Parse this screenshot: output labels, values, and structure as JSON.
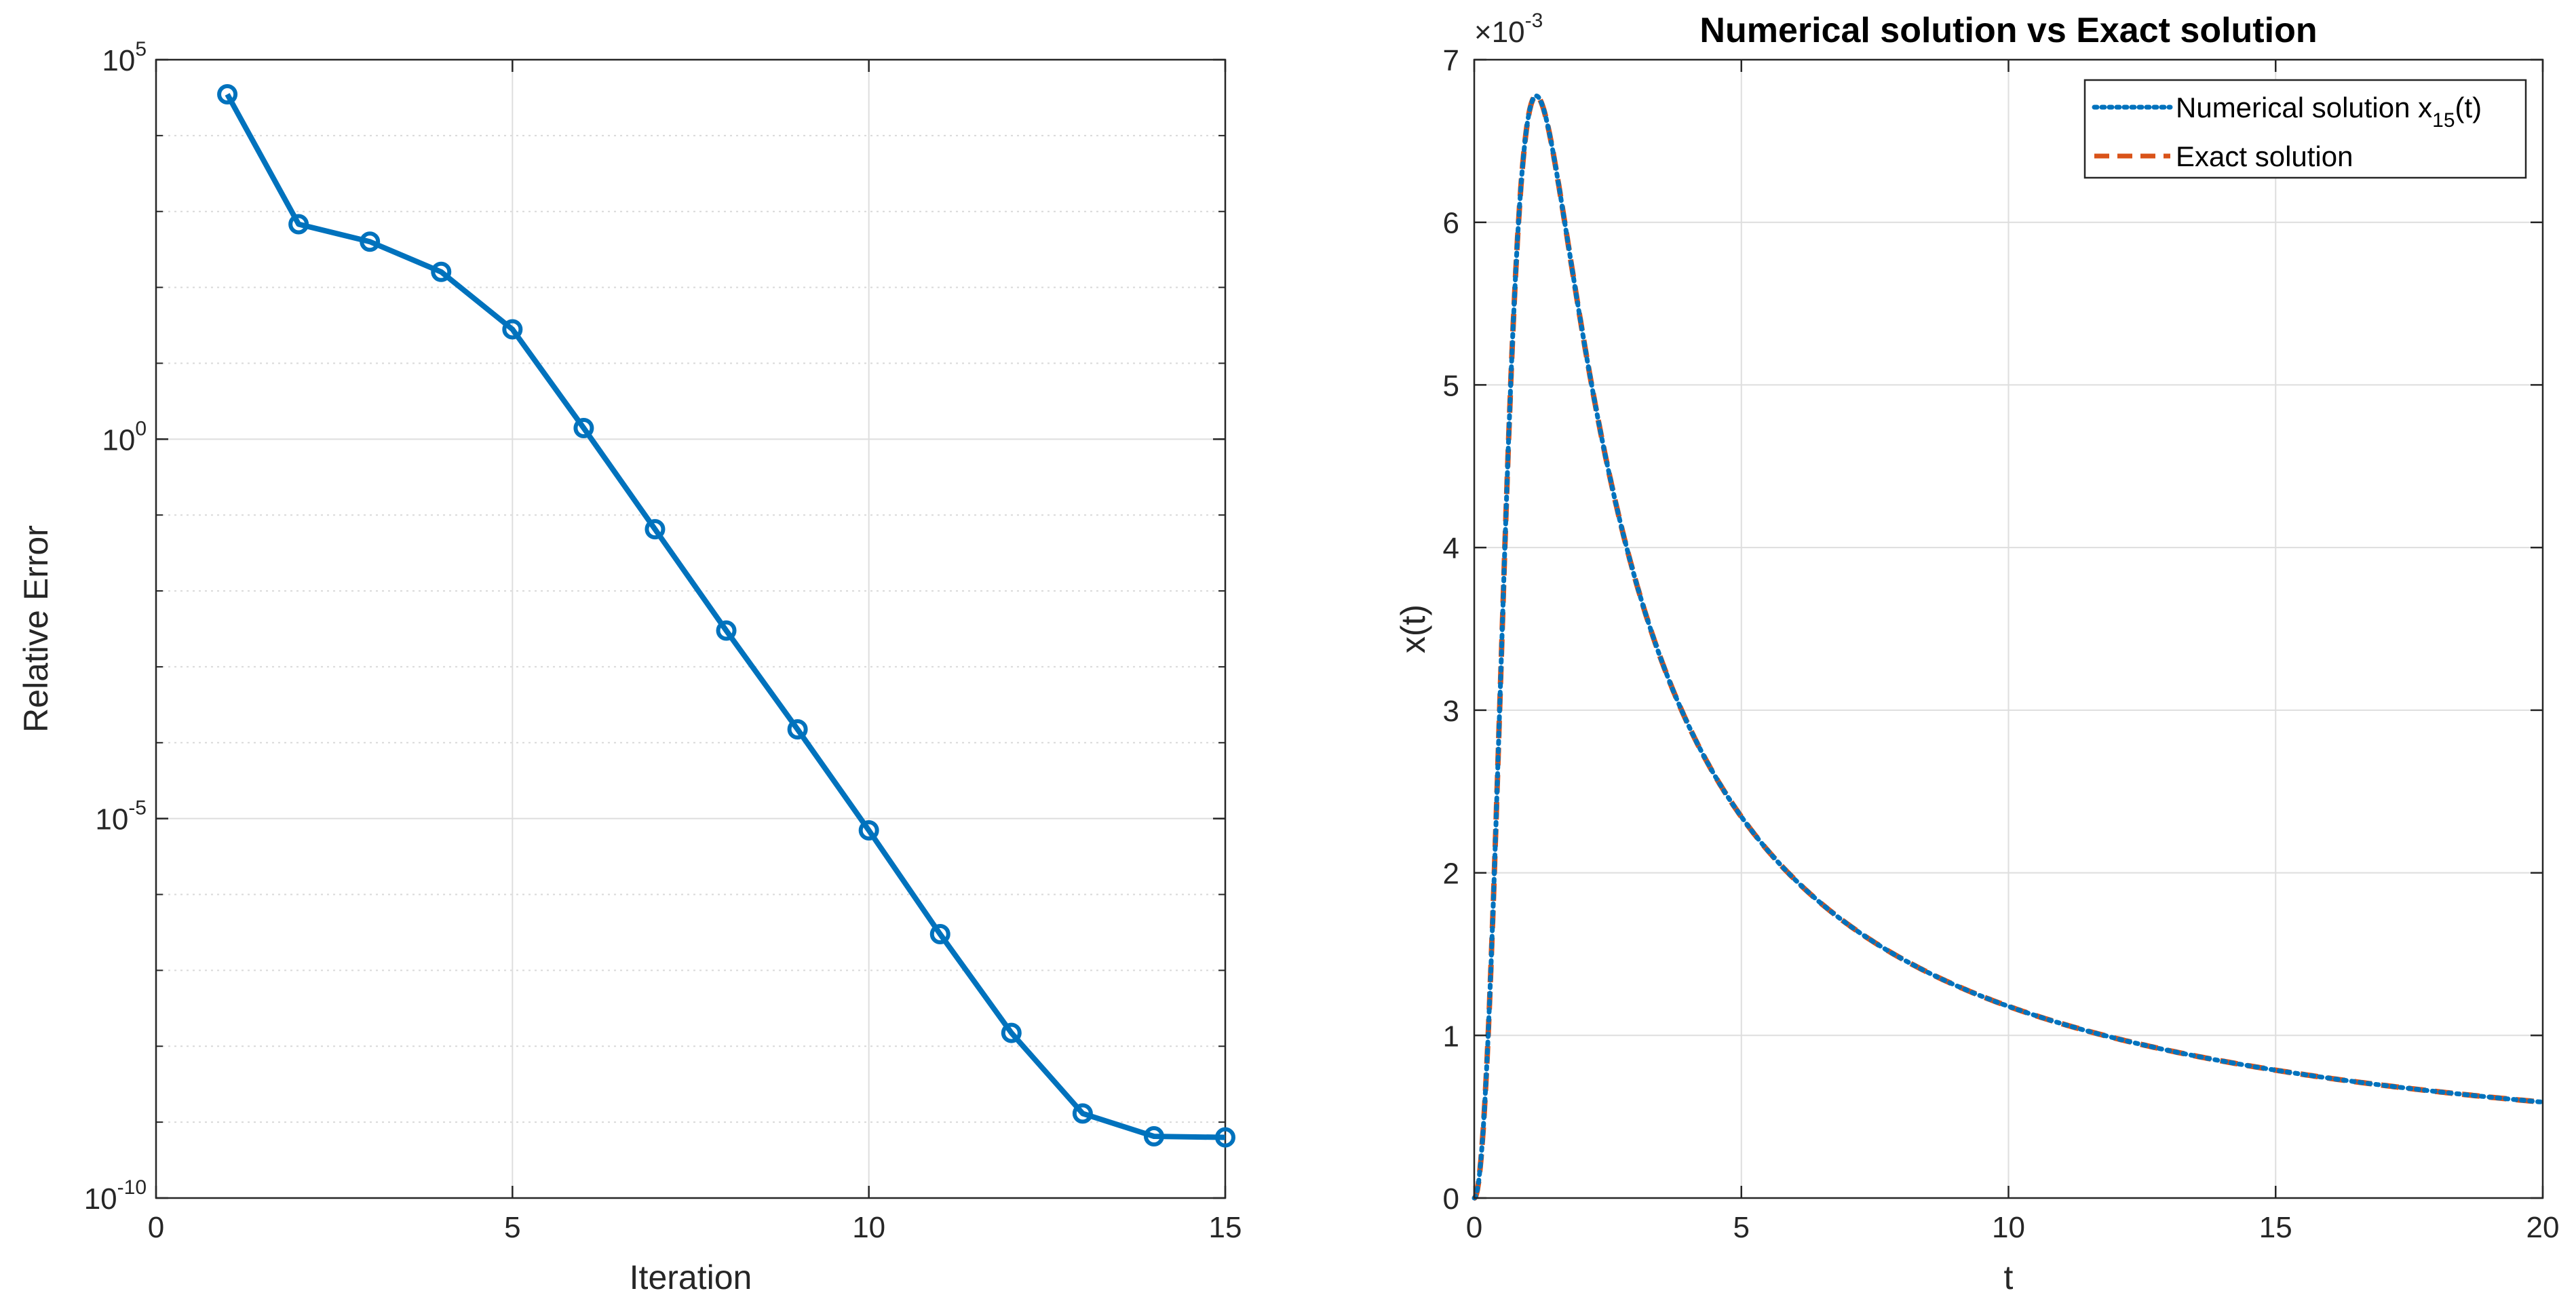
{
  "chart_data": [
    {
      "type": "line",
      "title": "",
      "xlabel": "Iteration",
      "ylabel": "Relative Error",
      "xlim": [
        0,
        15
      ],
      "ylim": [
        1e-10,
        100000
      ],
      "yscale": "log",
      "grid": true,
      "x_ticks": [
        0,
        5,
        10,
        15
      ],
      "y_ticks": [
        {
          "base": "10",
          "exp": "5",
          "value": 100000
        },
        {
          "base": "10",
          "exp": "0",
          "value": 1
        },
        {
          "base": "10",
          "exp": "-5",
          "value": 1e-05
        },
        {
          "base": "10",
          "exp": "-10",
          "value": 1e-10
        }
      ],
      "series": [
        {
          "name": "Relative Error",
          "color": "#0072BD",
          "marker": "circle",
          "x": [
            1,
            2,
            3,
            4,
            5,
            6,
            7,
            8,
            9,
            10,
            11,
            12,
            13,
            14,
            15
          ],
          "y": [
            35000,
            680,
            400,
            160,
            28,
            1.4,
            0.065,
            0.003,
            0.00015,
            7e-06,
            3e-07,
            1.5e-08,
            1.3e-09,
            6.5e-10,
            6.3e-10
          ]
        }
      ]
    },
    {
      "type": "line",
      "title": "Numerical solution vs Exact solution",
      "xlabel": "t",
      "ylabel": "x(t)",
      "xlim": [
        0,
        20
      ],
      "ylim": [
        0,
        7
      ],
      "y_multiplier": {
        "base": "×10",
        "exp": "-3"
      },
      "grid": true,
      "x_ticks": [
        0,
        5,
        10,
        15,
        20
      ],
      "y_ticks": [
        0,
        1,
        2,
        3,
        4,
        5,
        6,
        7
      ],
      "legend": {
        "placement": "top-right",
        "entries": [
          {
            "label": "Numerical solution x",
            "subscript": "15",
            "suffix": "(t)",
            "color": "#0072BD",
            "style": "dotted"
          },
          {
            "label": "Exact solution",
            "color": "#D95319",
            "style": "dashed"
          }
        ]
      },
      "curve_model": "x(t) = A * t^2 / (1 + B * t^3), sampled on [0, 20]",
      "curve_params": {
        "A": 0.0151,
        "B": 1.28
      },
      "series": [
        {
          "name": "Numerical solution x15(t)",
          "color": "#0072BD",
          "style": "dotted"
        },
        {
          "name": "Exact solution",
          "color": "#D95319",
          "style": "dashed"
        }
      ]
    }
  ]
}
